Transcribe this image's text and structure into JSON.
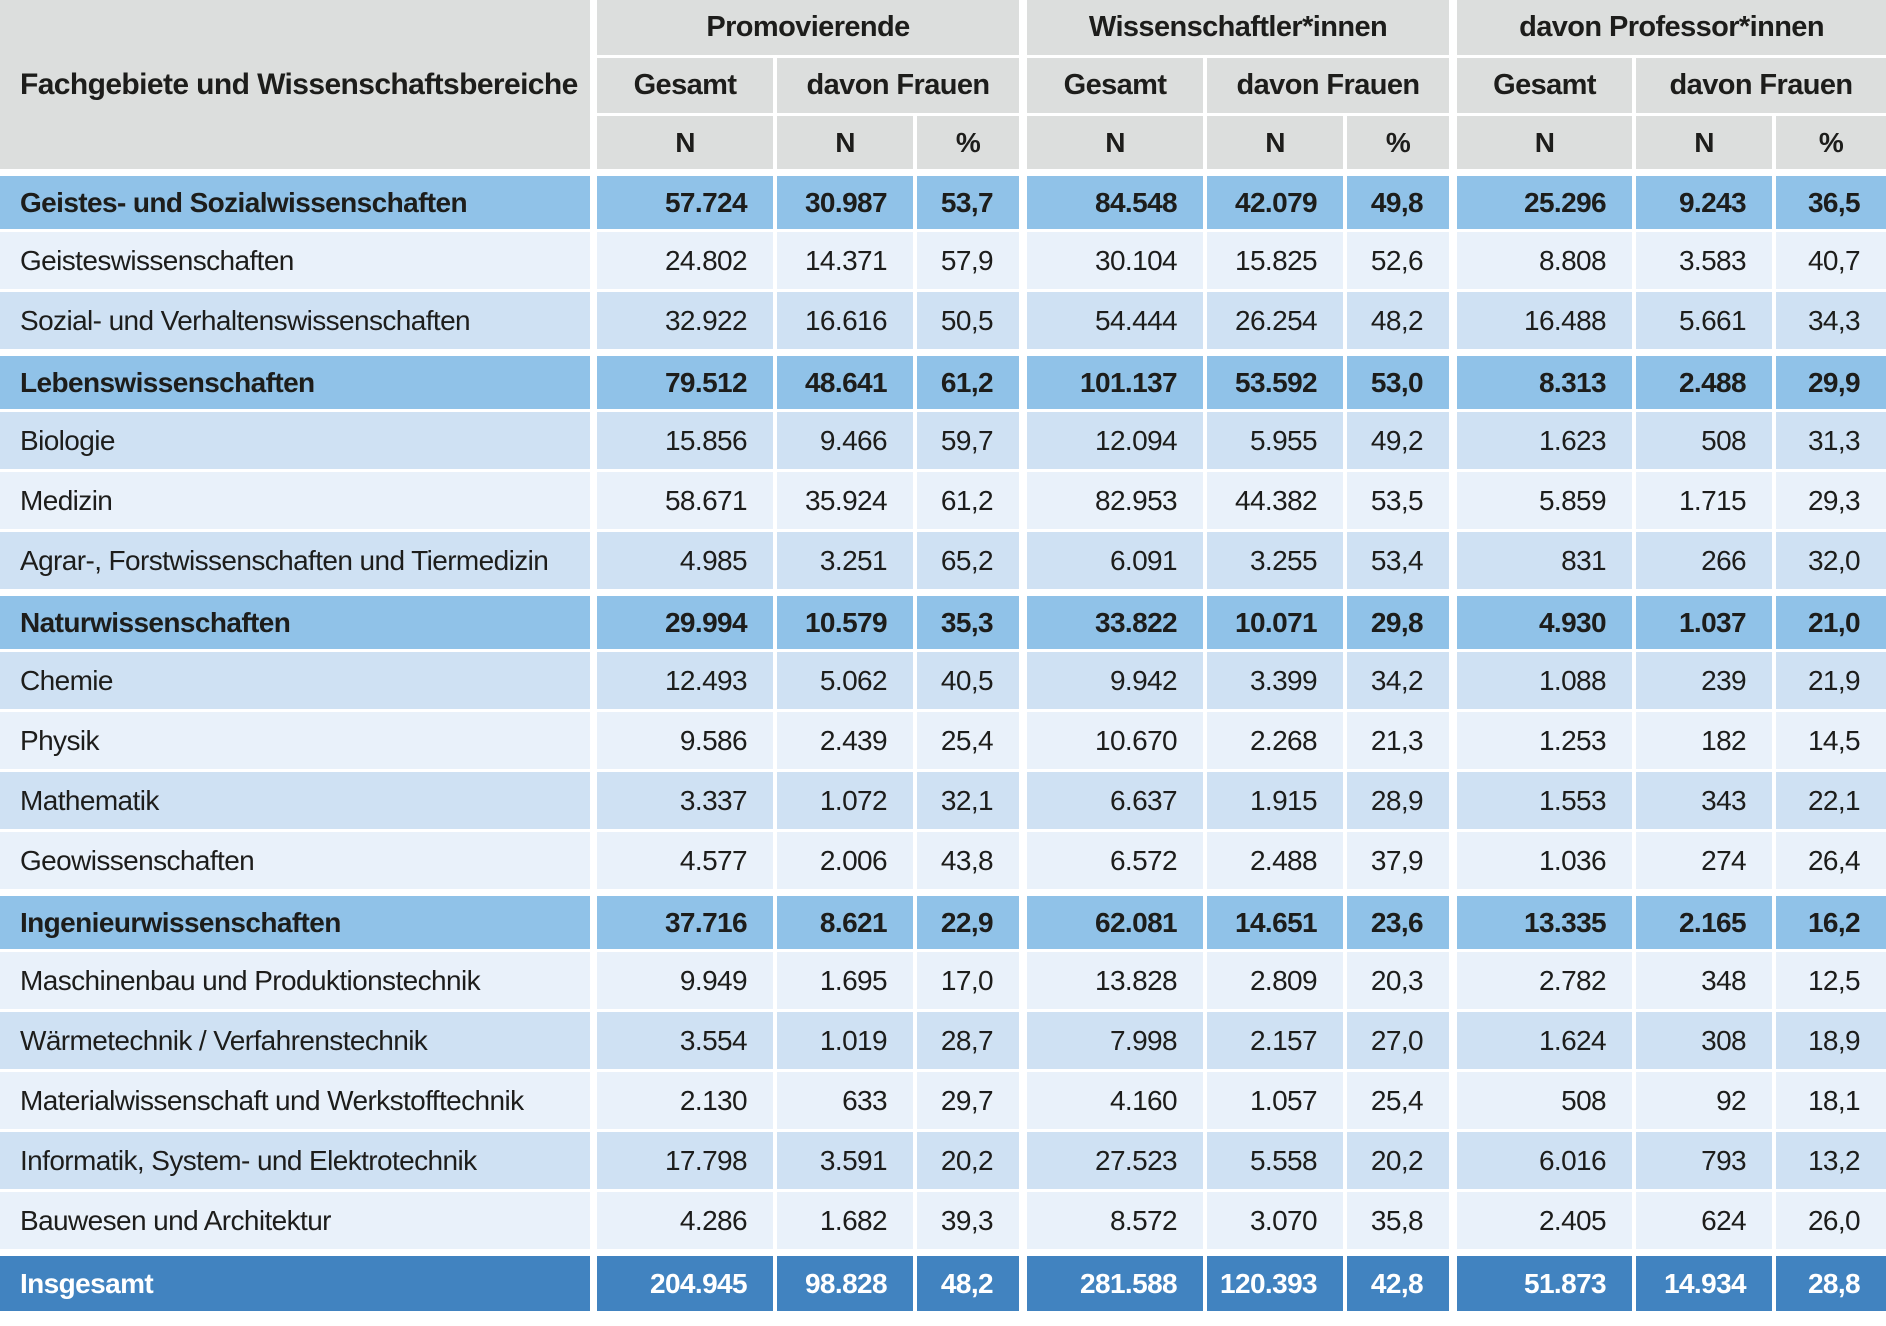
{
  "table": {
    "title_column": "Fachgebiete und Wissenschaftsbereiche",
    "groups": [
      {
        "label": "Promovierende",
        "sub_total": "Gesamt",
        "sub_women": "davon Frauen",
        "units": [
          "N",
          "N",
          "%"
        ]
      },
      {
        "label": "Wissenschaftler*innen",
        "sub_total": "Gesamt",
        "sub_women": "davon Frauen",
        "units": [
          "N",
          "N",
          "%"
        ]
      },
      {
        "label": "davon Professor*innen",
        "sub_total": "Gesamt",
        "sub_women": "davon Frauen",
        "units": [
          "N",
          "N",
          "%"
        ]
      }
    ],
    "rows": [
      {
        "label": "Geistes- und Sozialwissenschaften",
        "shade": "category",
        "values": [
          "57.724",
          "30.987",
          "53,7",
          "84.548",
          "42.079",
          "49,8",
          "25.296",
          "9.243",
          "36,5"
        ]
      },
      {
        "label": "Geisteswissenschaften",
        "shade": "light",
        "values": [
          "24.802",
          "14.371",
          "57,9",
          "30.104",
          "15.825",
          "52,6",
          "8.808",
          "3.583",
          "40,7"
        ]
      },
      {
        "label": "Sozial- und Verhaltenswissenschaften",
        "shade": "dark",
        "values": [
          "32.922",
          "16.616",
          "50,5",
          "54.444",
          "26.254",
          "48,2",
          "16.488",
          "5.661",
          "34,3"
        ]
      },
      {
        "label": "Lebenswissenschaften",
        "shade": "category",
        "values": [
          "79.512",
          "48.641",
          "61,2",
          "101.137",
          "53.592",
          "53,0",
          "8.313",
          "2.488",
          "29,9"
        ]
      },
      {
        "label": "Biologie",
        "shade": "dark",
        "values": [
          "15.856",
          "9.466",
          "59,7",
          "12.094",
          "5.955",
          "49,2",
          "1.623",
          "508",
          "31,3"
        ]
      },
      {
        "label": "Medizin",
        "shade": "light",
        "values": [
          "58.671",
          "35.924",
          "61,2",
          "82.953",
          "44.382",
          "53,5",
          "5.859",
          "1.715",
          "29,3"
        ]
      },
      {
        "label": "Agrar-, Forstwissenschaften und Tiermedizin",
        "shade": "dark",
        "values": [
          "4.985",
          "3.251",
          "65,2",
          "6.091",
          "3.255",
          "53,4",
          "831",
          "266",
          "32,0"
        ]
      },
      {
        "label": "Naturwissenschaften",
        "shade": "category",
        "values": [
          "29.994",
          "10.579",
          "35,3",
          "33.822",
          "10.071",
          "29,8",
          "4.930",
          "1.037",
          "21,0"
        ]
      },
      {
        "label": "Chemie",
        "shade": "dark",
        "values": [
          "12.493",
          "5.062",
          "40,5",
          "9.942",
          "3.399",
          "34,2",
          "1.088",
          "239",
          "21,9"
        ]
      },
      {
        "label": "Physik",
        "shade": "light",
        "values": [
          "9.586",
          "2.439",
          "25,4",
          "10.670",
          "2.268",
          "21,3",
          "1.253",
          "182",
          "14,5"
        ]
      },
      {
        "label": "Mathematik",
        "shade": "dark",
        "values": [
          "3.337",
          "1.072",
          "32,1",
          "6.637",
          "1.915",
          "28,9",
          "1.553",
          "343",
          "22,1"
        ]
      },
      {
        "label": "Geowissenschaften",
        "shade": "light",
        "values": [
          "4.577",
          "2.006",
          "43,8",
          "6.572",
          "2.488",
          "37,9",
          "1.036",
          "274",
          "26,4"
        ]
      },
      {
        "label": "Ingenieurwissenschaften",
        "shade": "category",
        "values": [
          "37.716",
          "8.621",
          "22,9",
          "62.081",
          "14.651",
          "23,6",
          "13.335",
          "2.165",
          "16,2"
        ]
      },
      {
        "label": "Maschinenbau und Produktionstechnik",
        "shade": "light",
        "values": [
          "9.949",
          "1.695",
          "17,0",
          "13.828",
          "2.809",
          "20,3",
          "2.782",
          "348",
          "12,5"
        ]
      },
      {
        "label": "Wärmetechnik / Verfahrenstechnik",
        "shade": "dark",
        "values": [
          "3.554",
          "1.019",
          "28,7",
          "7.998",
          "2.157",
          "27,0",
          "1.624",
          "308",
          "18,9"
        ]
      },
      {
        "label": "Materialwissenschaft und Werkstofftechnik",
        "shade": "light",
        "values": [
          "2.130",
          "633",
          "29,7",
          "4.160",
          "1.057",
          "25,4",
          "508",
          "92",
          "18,1"
        ]
      },
      {
        "label": "Informatik, System- und Elektrotechnik",
        "shade": "dark",
        "values": [
          "17.798",
          "3.591",
          "20,2",
          "27.523",
          "5.558",
          "20,2",
          "6.016",
          "793",
          "13,2"
        ]
      },
      {
        "label": "Bauwesen und Architektur",
        "shade": "light",
        "values": [
          "4.286",
          "1.682",
          "39,3",
          "8.572",
          "3.070",
          "35,8",
          "2.405",
          "624",
          "26,0"
        ]
      },
      {
        "label": "Insgesamt",
        "shade": "total",
        "values": [
          "204.945",
          "98.828",
          "48,2",
          "281.588",
          "120.393",
          "42,8",
          "51.873",
          "14.934",
          "28,8"
        ]
      }
    ],
    "colors": {
      "header_bg": "#dcdedd",
      "category_row_bg": "#90c2e8",
      "row_light_bg": "#e9f1fa",
      "row_dark_bg": "#cfe1f3",
      "total_row_bg": "#4183c0",
      "separator": "#ffffff",
      "text": "#1d1d1b",
      "total_text": "#ffffff"
    }
  }
}
